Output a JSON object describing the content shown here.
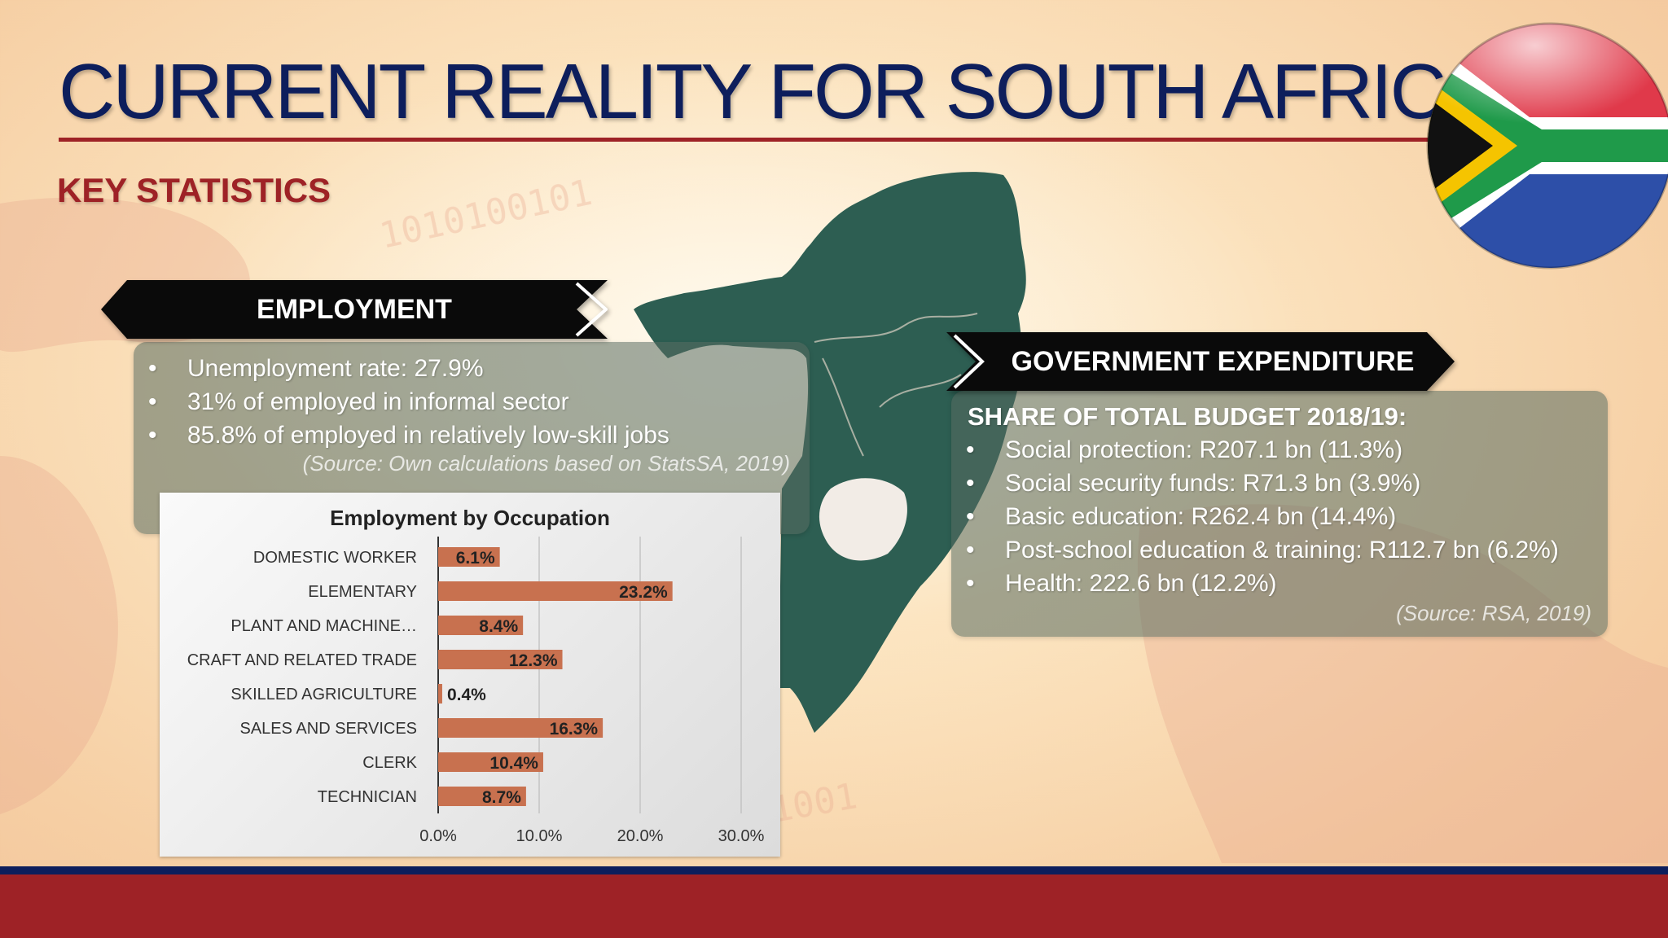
{
  "slide": {
    "title": "CURRENT REALITY FOR SOUTH AFRICA",
    "subtitle": "KEY STATISTICS"
  },
  "employment": {
    "heading": "EMPLOYMENT",
    "bullets": [
      "Unemployment rate: 27.9%",
      "31% of employed in informal sector",
      "85.8% of employed in relatively low-skill jobs"
    ],
    "source": "(Source: Own calculations based on StatsSA, 2019)"
  },
  "expenditure": {
    "heading": "GOVERNMENT EXPENDITURE",
    "subheading": "SHARE OF TOTAL BUDGET 2018/19:",
    "bullets": [
      "Social protection: R207.1 bn (11.3%)",
      "Social security funds: R71.3 bn (3.9%)",
      "Basic education: R262.4 bn (14.4%)",
      "Post-school education & training: R112.7 bn (6.2%)",
      "Health: 222.6 bn (12.2%)"
    ],
    "source": "(Source: RSA, 2019)"
  },
  "colors": {
    "navy": "#0d1e5c",
    "red": "#9e2226",
    "bar": "#c8714f",
    "map_green": "#2d5e52"
  },
  "chart_data": {
    "type": "bar",
    "orientation": "horizontal",
    "title": "Employment by Occupation",
    "categories": [
      "DOMESTIC WORKER",
      "ELEMENTARY",
      "PLANT AND MACHINE…",
      "CRAFT AND RELATED TRADE",
      "SKILLED AGRICULTURE",
      "SALES AND SERVICES",
      "CLERK",
      "TECHNICIAN"
    ],
    "values": [
      6.1,
      23.2,
      8.4,
      12.3,
      0.4,
      16.3,
      10.4,
      8.7
    ],
    "value_labels": [
      "6.1%",
      "23.2%",
      "8.4%",
      "12.3%",
      "0.4%",
      "16.3%",
      "10.4%",
      "8.7%"
    ],
    "xlim": [
      0,
      30
    ],
    "x_ticks": [
      0,
      10,
      20,
      30
    ],
    "x_tick_labels": [
      "0.0%",
      "10.0%",
      "20.0%",
      "30.0%"
    ],
    "grid": true,
    "legend": "none"
  }
}
